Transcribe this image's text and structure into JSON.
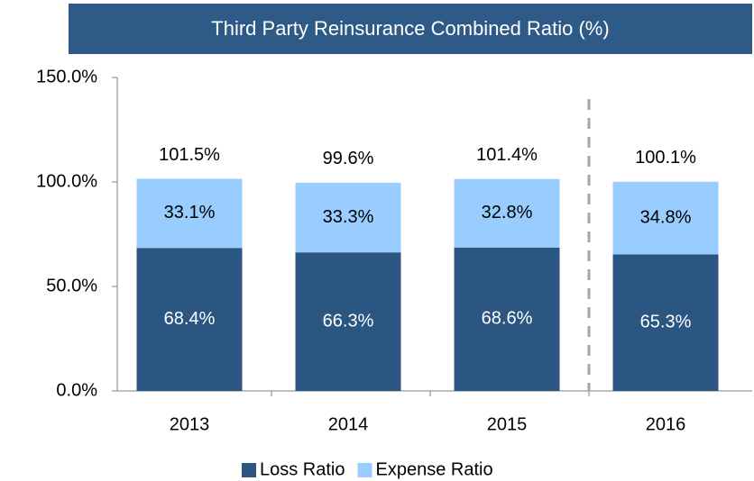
{
  "chart_data": {
    "type": "stacked_bar",
    "title": "Third Party Reinsurance Combined Ratio (%)",
    "categories": [
      "2013",
      "2014",
      "2015",
      "2016"
    ],
    "series": [
      {
        "name": "Loss Ratio",
        "color": "#2c5682",
        "values": [
          68.4,
          66.3,
          68.6,
          65.3
        ],
        "value_labels": [
          "68.4%",
          "66.3%",
          "68.6%",
          "65.3%"
        ]
      },
      {
        "name": "Expense Ratio",
        "color": "#99ccff",
        "values": [
          33.1,
          33.3,
          32.8,
          34.8
        ],
        "value_labels": [
          "33.1%",
          "33.3%",
          "32.8%",
          "34.8%"
        ]
      }
    ],
    "totals": [
      101.5,
      99.6,
      101.4,
      100.1
    ],
    "total_labels": [
      "101.5%",
      "99.6%",
      "101.4%",
      "100.1%"
    ],
    "ylim": [
      0,
      150
    ],
    "yticks": [
      {
        "value": 0,
        "label": "0.0%"
      },
      {
        "value": 50,
        "label": "50.0%"
      },
      {
        "value": 100,
        "label": "100.0%"
      },
      {
        "value": 150,
        "label": "150.0%"
      }
    ],
    "grid": false,
    "legend": "bottom"
  }
}
